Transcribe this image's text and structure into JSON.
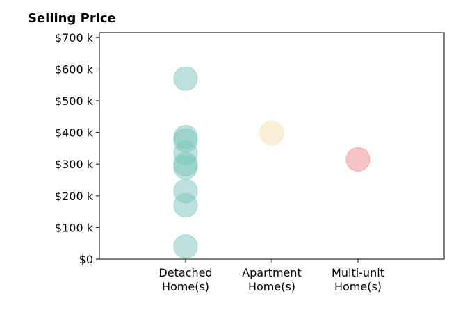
{
  "chart_data": {
    "type": "scatter",
    "title": "Selling Price",
    "xlabel": "",
    "ylabel": "",
    "categories": [
      [
        "Detached",
        "Home(s)"
      ],
      [
        "Apartment",
        "Home(s)"
      ],
      [
        "Multi-unit",
        "Home(s)"
      ]
    ],
    "ylim": [
      0,
      715000
    ],
    "yticks": [
      {
        "value": 0,
        "label": "$0"
      },
      {
        "value": 100000,
        "label": "$100 k"
      },
      {
        "value": 200000,
        "label": "$200 k"
      },
      {
        "value": 300000,
        "label": "$300 k"
      },
      {
        "value": 400000,
        "label": "$400 k"
      },
      {
        "value": 500000,
        "label": "$500 k"
      },
      {
        "value": 600000,
        "label": "$600 k"
      },
      {
        "value": 700000,
        "label": "$700 k"
      }
    ],
    "grid": false,
    "legend": "none",
    "series": [
      {
        "category": "Detached Home(s)",
        "color": "#7cc6bb",
        "values": [
          570000,
          385000,
          375000,
          335000,
          300000,
          290000,
          215000,
          170000,
          40000
        ]
      },
      {
        "category": "Apartment Home(s)",
        "color": "#f5dfae",
        "values": [
          398000
        ]
      },
      {
        "category": "Multi-unit Home(s)",
        "color": "#f08a90",
        "values": [
          315000
        ]
      }
    ]
  }
}
